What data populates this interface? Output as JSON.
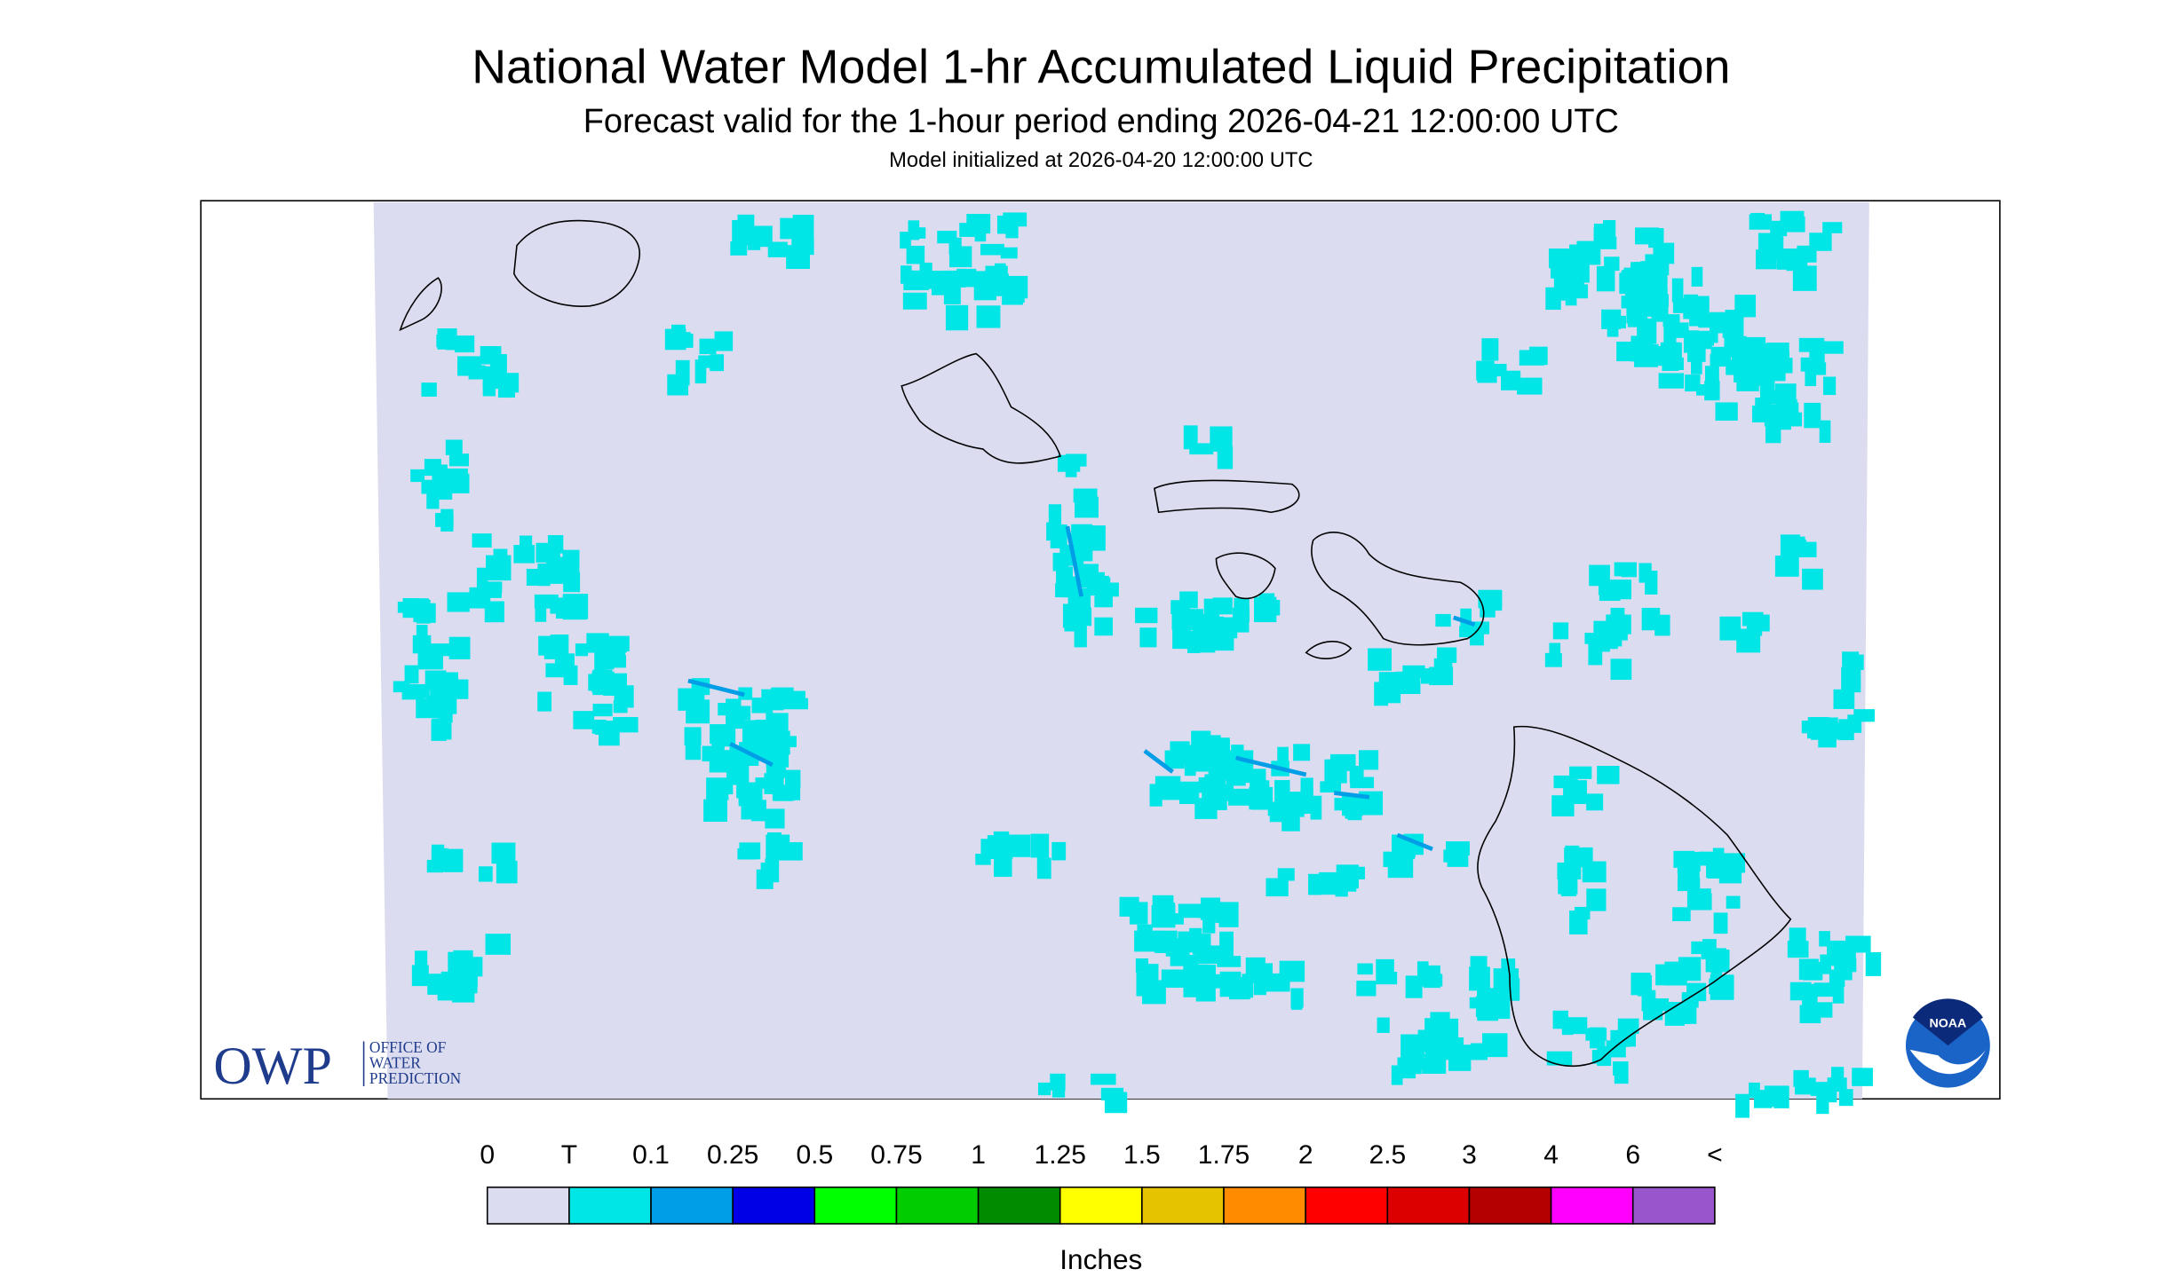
{
  "header": {
    "title": "National Water Model 1-hr Accumulated Liquid Precipitation",
    "subtitle": "Forecast valid for the 1-hour period ending 2026-04-21 12:00:00 UTC",
    "initialized": "Model initialized at 2026-04-20 12:00:00 UTC"
  },
  "legend": {
    "labels": [
      "0",
      "T",
      "0.1",
      "0.25",
      "0.5",
      "0.75",
      "1",
      "1.25",
      "1.5",
      "1.75",
      "2",
      "2.5",
      "3",
      "4",
      "6",
      "<"
    ],
    "colors": [
      "#dcdcf0",
      "#00e6e6",
      "#009ee6",
      "#0000e6",
      "#00ff00",
      "#00cd00",
      "#008c00",
      "#ffff00",
      "#e6c300",
      "#ff8c00",
      "#ff0000",
      "#dc0000",
      "#b40000",
      "#ff00ff",
      "#9955cc"
    ],
    "unit": "Inches"
  },
  "logos": {
    "owp": "OWP",
    "owp_lines": [
      "OFFICE OF",
      "WATER",
      "PREDICTION"
    ],
    "noaa": "NOAA"
  }
}
